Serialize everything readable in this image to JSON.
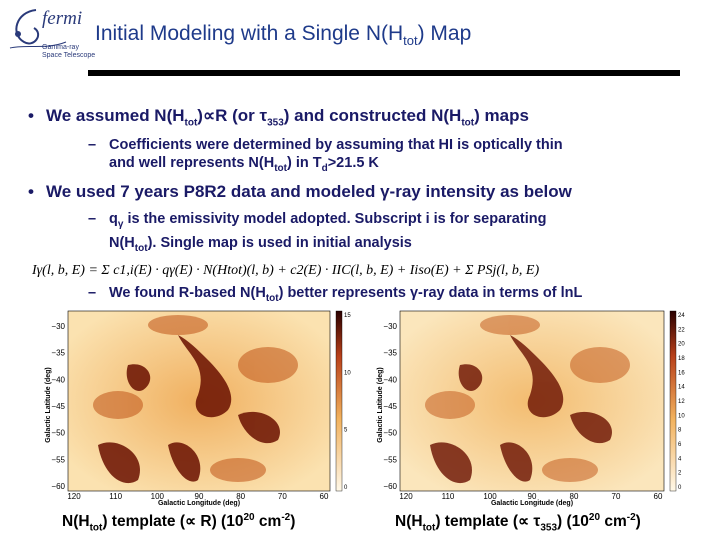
{
  "logo": {
    "word": "fermi",
    "sub1": "Gamma-ray",
    "sub2": "Space Telescope"
  },
  "title": {
    "main": "Initial Modeling with a Single N(H",
    "sub": "tot",
    "end": ") Map"
  },
  "bullets": [
    {
      "pre": "We assumed N(H",
      "sub": "tot",
      "mid": ")∝R (or τ",
      "sub2": "353",
      "post": ") and constructed N(H",
      "sub3": "tot",
      "end": ") maps"
    },
    {
      "pre": "We used 7 years P8R2 data and modeled γ-ray intensity as below"
    }
  ],
  "subbullets": [
    {
      "dash": "–",
      "l1": "Coefficients were determined by assuming that HI is optically thin",
      "l2a": "and well represents N(H",
      "l2sub": "tot",
      "l2b": ") in T",
      "l2sub2": "d",
      "l2c": ">21.5 K"
    },
    {
      "dash": "–",
      "l1a": "q",
      "l1sub": "γ",
      "l1b": " is the emissivity model adopted. Subscript i is for separating",
      "l2a": "N(H",
      "l2sub": "tot",
      "l2b": "). Single map is used in initial analysis"
    },
    {
      "dash": "–",
      "a": "We found R-based N(H",
      "sub": "tot",
      "b": ") better represents γ-ray data in terms of lnL"
    }
  ],
  "equation": "Iγ(l, b, E) = Σ c1,i(E) · qγ(E) · N(Htot)(l, b) + c2(E) · IIC(l, b, E) + Iiso(E) + Σ PSj(l, b, E)",
  "maps": [
    {
      "ylabel": "Galactic Latitude (deg)",
      "xlabel": "Galactic Longitude (deg)",
      "xticks": [
        "120",
        "110",
        "100",
        "90",
        "80",
        "70",
        "60"
      ],
      "yticks": [
        "−30",
        "−35",
        "−40",
        "−45",
        "−50",
        "−55",
        "−60"
      ],
      "cticks": [
        "15",
        "10",
        "5",
        "0"
      ],
      "caption": {
        "a": "N(H",
        "sub": "tot",
        "b": ") template (∝ R) (10",
        "sup": "20",
        "c": " cm",
        "sup2": "-2",
        "d": ")"
      }
    },
    {
      "ylabel": "Galactic Latitude (deg)",
      "xlabel": "Galactic Longitude (deg)",
      "xticks": [
        "120",
        "110",
        "100",
        "90",
        "80",
        "70",
        "60"
      ],
      "yticks": [
        "−30",
        "−35",
        "−40",
        "−45",
        "−50",
        "−55",
        "−60"
      ],
      "cticks": [
        "24",
        "22",
        "20",
        "18",
        "16",
        "14",
        "12",
        "10",
        "8",
        "6",
        "4",
        "2",
        "0"
      ],
      "caption": {
        "a": "N(H",
        "sub": "tot",
        "b": ") template (∝ τ",
        "sub2": "353",
        "c": ") (10",
        "sup": "20",
        "d": " cm",
        "sup2": "-2",
        "e": ")"
      }
    }
  ],
  "colors": {
    "title": "#1e3a8a",
    "text": "#1a1a66",
    "rule": "#000000",
    "map_low": "#fff6e0",
    "map_high": "#3a0000"
  }
}
